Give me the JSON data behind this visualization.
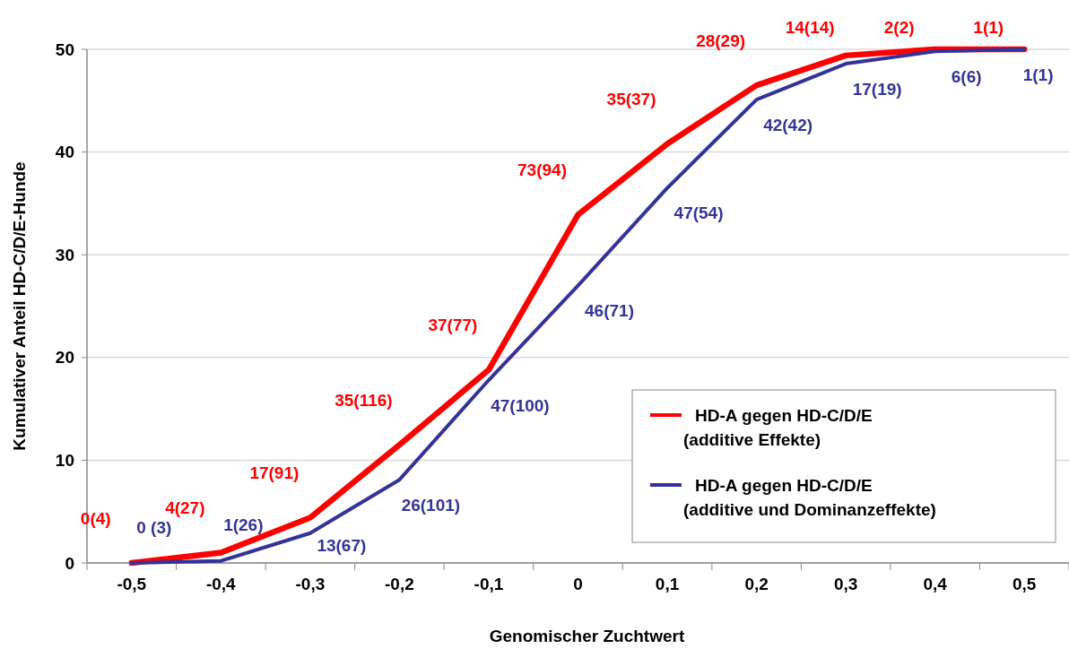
{
  "chart_data": {
    "type": "line",
    "xlabel": "Genomischer Zuchtwert",
    "ylabel": "Kumulativer Anteil HD-C/D/E-Hunde",
    "categories": [
      "-0,5",
      "-0,4",
      "-0,3",
      "-0,2",
      "-0,1",
      "0",
      "0,1",
      "0,2",
      "0,3",
      "0,4",
      "0,5"
    ],
    "series": [
      {
        "name": "HD-A gegen HD-C/D/E\n(additive Effekte)",
        "color": "#ff0000",
        "values": [
          0,
          1.0,
          4.4,
          11.5,
          18.8,
          33.9,
          40.8,
          46.5,
          49.4,
          50,
          50
        ]
      },
      {
        "name": "HD-A gegen HD-C/D/E\n(additive und Dominanzeffekte)",
        "color": "#333399",
        "values": [
          0,
          0.2,
          2.9,
          8.1,
          17.8,
          27,
          36.5,
          45.1,
          48.6,
          49.8,
          50
        ]
      }
    ],
    "annotations": [
      {
        "text": "0(4)",
        "x": "-0,5",
        "y": 0
      },
      {
        "text": "4(27)",
        "x": "-0,4",
        "y": 1.0
      },
      {
        "text": "17(91)",
        "x": "-0,3",
        "y": 4.4
      },
      {
        "text": "35(116)",
        "x": "-0,2",
        "y": 11.5
      },
      {
        "text": "37(77)",
        "x": "-0,1",
        "y": 18.8
      },
      {
        "text": "73(94)",
        "x": "0",
        "y": 33.9
      },
      {
        "text": "35(37)",
        "x": "0,1",
        "y": 40.8
      },
      {
        "text": "28(29)",
        "x": "0,2",
        "y": 46.5
      },
      {
        "text": "14(14)",
        "x": "0,3",
        "y": 49.4
      },
      {
        "text": "2(2)",
        "x": "0,4",
        "y": 50
      },
      {
        "text": "1(1)",
        "x": "0,5",
        "y": 50
      },
      {
        "text": "0 (3)",
        "x": "-0,5",
        "y": 0
      },
      {
        "text": "1(26)",
        "x": "-0,4",
        "y": 0.2
      },
      {
        "text": "13(67)",
        "x": "-0,3",
        "y": 2.9
      },
      {
        "text": "26(101)",
        "x": "-0,2",
        "y": 8.1
      },
      {
        "text": "47(100)",
        "x": "-0,1",
        "y": 17.8
      },
      {
        "text": "46(71)",
        "x": "0",
        "y": 27
      },
      {
        "text": "47(54)",
        "x": "0,1",
        "y": 36.5
      },
      {
        "text": "42(42)",
        "x": "0,2",
        "y": 45.1
      },
      {
        "text": "17(19)",
        "x": "0,3",
        "y": 48.6
      },
      {
        "text": "6(6)",
        "x": "0,4",
        "y": 49.8
      },
      {
        "text": "1(1)",
        "x": "0,5",
        "y": 50
      }
    ],
    "ylim": [
      0,
      50
    ],
    "yticks": [
      0,
      10,
      20,
      30,
      40,
      50
    ],
    "grid": "y",
    "legend": "bottom right",
    "marker": "none",
    "line_style": "solid"
  }
}
